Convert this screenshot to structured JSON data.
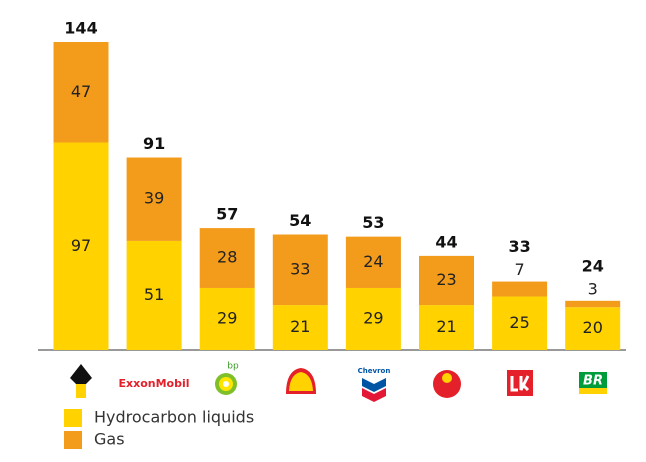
{
  "chart_data": {
    "type": "stacked-bar",
    "categories": [
      null,
      "ExxonMobil",
      "bp",
      null,
      "Chevron",
      null,
      null,
      "BR"
    ],
    "series": [
      {
        "name": "Hydrocarbon liquids",
        "color": "#ffd200",
        "values": [
          97,
          51,
          29,
          21,
          29,
          21,
          25,
          20
        ]
      },
      {
        "name": "Gas",
        "color": "#f39c1c",
        "values": [
          47,
          39,
          28,
          33,
          24,
          23,
          7,
          3
        ]
      }
    ],
    "totals": [
      144,
      91,
      57,
      54,
      53,
      44,
      33,
      24
    ]
  }
}
